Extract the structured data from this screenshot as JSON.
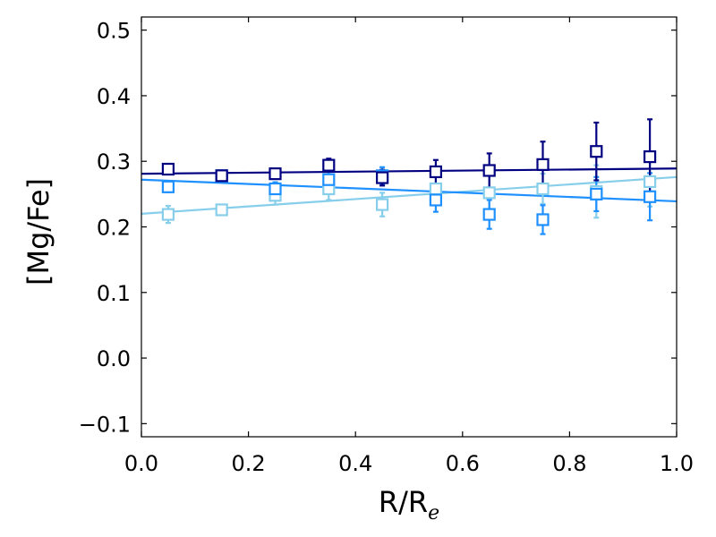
{
  "chart_data": {
    "type": "scatter",
    "title": "",
    "xlabel": "R/R",
    "xlabel_subscript": "e",
    "ylabel": "[Mg/Fe]",
    "xlim": [
      0.0,
      1.0
    ],
    "ylim": [
      -0.12,
      0.52
    ],
    "xticks": [
      0.0,
      0.2,
      0.4,
      0.6,
      0.8,
      1.0
    ],
    "xtick_labels": [
      "0.0",
      "0.2",
      "0.4",
      "0.6",
      "0.8",
      "1.0"
    ],
    "yticks": [
      -0.1,
      0.0,
      0.1,
      0.2,
      0.3,
      0.4,
      0.5
    ],
    "ytick_labels": [
      "−0.1",
      "0.0",
      "0.1",
      "0.2",
      "0.3",
      "0.4",
      "0.5"
    ],
    "grid": false,
    "legend": "none",
    "marker": "open-square",
    "series": [
      {
        "color": "#87ceeb",
        "x": [
          0.05,
          0.15,
          0.25,
          0.35,
          0.45,
          0.55,
          0.65,
          0.75,
          0.85,
          0.95
        ],
        "y": [
          0.219,
          0.226,
          0.248,
          0.258,
          0.234,
          0.258,
          0.252,
          0.258,
          0.254,
          0.269
        ],
        "yerr": [
          0.013,
          0.008,
          0.014,
          0.017,
          0.018,
          0.022,
          0.026,
          0.023,
          0.04,
          0.038
        ],
        "fit": [
          0.22,
          0.276
        ]
      },
      {
        "color": "#1e90ff",
        "x": [
          0.05,
          0.15,
          0.25,
          0.35,
          0.45,
          0.55,
          0.65,
          0.75,
          0.85,
          0.95
        ],
        "y": [
          0.261,
          0.278,
          0.258,
          0.272,
          0.278,
          0.241,
          0.219,
          0.211,
          0.25,
          0.246
        ],
        "yerr": [
          0.008,
          0.008,
          0.01,
          0.013,
          0.013,
          0.018,
          0.022,
          0.022,
          0.026,
          0.036
        ],
        "fit": [
          0.272,
          0.239
        ]
      },
      {
        "color": "#000080",
        "x": [
          0.05,
          0.15,
          0.25,
          0.35,
          0.45,
          0.55,
          0.65,
          0.75,
          0.85,
          0.95
        ],
        "y": [
          0.288,
          0.278,
          0.281,
          0.294,
          0.275,
          0.284,
          0.286,
          0.295,
          0.315,
          0.307
        ],
        "yerr": [
          0.006,
          0.006,
          0.007,
          0.01,
          0.012,
          0.018,
          0.026,
          0.035,
          0.044,
          0.057
        ],
        "fit": [
          0.281,
          0.289
        ]
      }
    ]
  }
}
